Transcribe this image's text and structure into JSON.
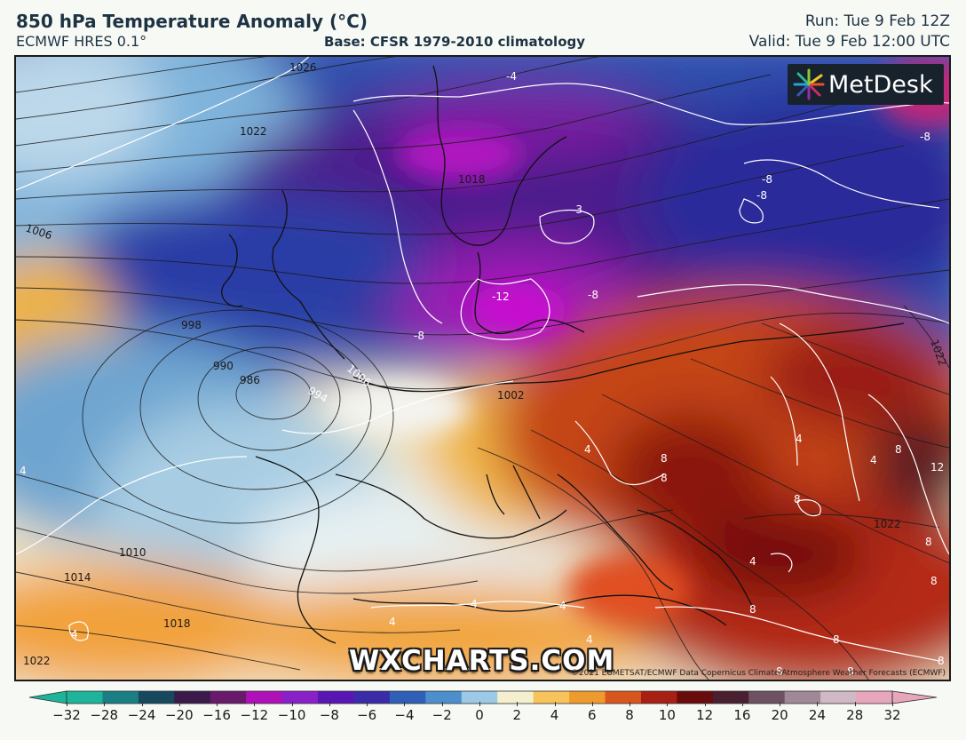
{
  "header": {
    "title": "850 hPa Temperature Anomaly (°C)",
    "model": "ECMWF HRES 0.1°",
    "base": "Base: CFSR 1979-2010 climatology",
    "run": "Run: Tue 9 Feb 12Z",
    "valid": "Valid: Tue 9 Feb 12:00 UTC"
  },
  "logo": {
    "text": "MetDesk",
    "icon": "metdesk-starburst-icon"
  },
  "watermark": "WXCHARTS.COM",
  "copyright": "©2021 EUMETSAT/ECMWF Data Copernicus Climate/Atmosphere Weather Forecasts (ECMWF)",
  "isobar_labels": [
    "1026",
    "1022",
    "1018",
    "1006",
    "998",
    "990",
    "986",
    "994",
    "1002",
    "1010",
    "1014",
    "1018",
    "1022",
    "1022",
    "1006",
    "1022"
  ],
  "anomaly_labels": [
    "-4",
    "-8",
    "-8",
    "-8",
    "-3",
    "-12",
    "-8",
    "-8",
    "4",
    "8",
    "8",
    "8",
    "8",
    "12",
    "4",
    "4",
    "4",
    "4",
    "4",
    "4",
    "8",
    "8",
    "8",
    "8",
    "4",
    "4",
    "4",
    "8",
    "8",
    "8"
  ],
  "colorbar": {
    "ticks": [
      "−32",
      "−28",
      "−24",
      "−20",
      "−16",
      "−12",
      "−10",
      "−8",
      "−6",
      "−4",
      "−2",
      "0",
      "2",
      "4",
      "6",
      "8",
      "10",
      "12",
      "16",
      "20",
      "24",
      "28",
      "32"
    ],
    "colors": [
      "#1db49a",
      "#1a7f84",
      "#16495e",
      "#3a1a4a",
      "#6a1a6a",
      "#b010b8",
      "#8a20c8",
      "#5a16b4",
      "#3a2ca8",
      "#2f5fb8",
      "#4d8fcc",
      "#9cc9e6",
      "#f4efcf",
      "#f7c35a",
      "#ee9a2c",
      "#d8561e",
      "#a82014",
      "#6a0b0c",
      "#4a2030",
      "#6e5262",
      "#a08896",
      "#d0b8c4",
      "#e8a6bc"
    ]
  }
}
